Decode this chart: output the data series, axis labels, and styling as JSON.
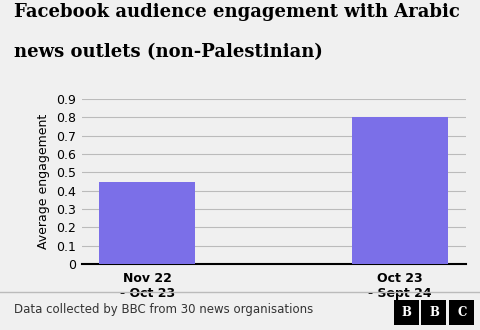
{
  "title_line1": "Facebook audience engagement with Arabic",
  "title_line2": "news outlets (non-Palestinian)",
  "categories": [
    "Nov 22\n- Oct 23",
    "Oct 23\n- Sept 24"
  ],
  "values": [
    0.45,
    0.8
  ],
  "bar_color": "#7B6FE8",
  "ylabel": "Average engagement",
  "ylim": [
    0,
    0.9
  ],
  "yticks": [
    0,
    0.1,
    0.2,
    0.3,
    0.4,
    0.5,
    0.6,
    0.7,
    0.8,
    0.9
  ],
  "footnote": "Data collected by BBC from 30 news organisations",
  "background_color": "#f0f0f0",
  "title_fontsize": 13,
  "ylabel_fontsize": 9,
  "tick_fontsize": 9,
  "footnote_fontsize": 8.5
}
